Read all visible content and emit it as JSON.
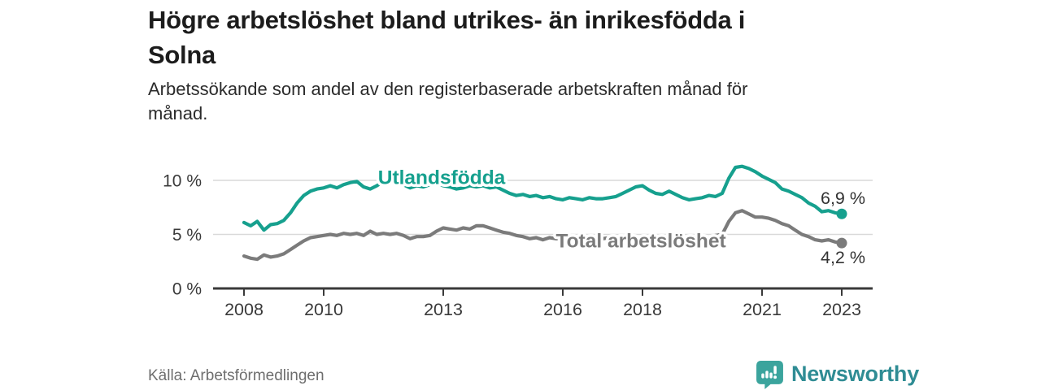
{
  "chart_data": {
    "type": "line",
    "title": "Högre arbetslöshet bland utrikes- än inrikesfödda i\nSolna",
    "subtitle": "Arbetssökande som andel av den registerbaserade arbetskraften månad för\nmånad.",
    "x": {
      "start_year": 2008,
      "points_per_year": 6,
      "tick_years": [
        2008,
        2010,
        2013,
        2016,
        2018,
        2021,
        2023
      ],
      "axis_range": [
        2007.2,
        2023.8
      ]
    },
    "y": {
      "ticks": [
        {
          "value": 0,
          "label": "0 %"
        },
        {
          "value": 5,
          "label": "5 %"
        },
        {
          "value": 10,
          "label": "10 %"
        }
      ],
      "range": [
        0,
        12.4
      ]
    },
    "grid": "horizontal",
    "legend": "inline-labels",
    "colors": {
      "axis": "#3a3a3a",
      "grid": "#d9d9d9",
      "tick_text": "#3a3a3a",
      "end_label_text": "#333333"
    },
    "series": [
      {
        "name": "Utlandsfödda",
        "color": "#16a08e",
        "end_label": "6,9 %",
        "end_value": 6.9,
        "label_at": {
          "year": 2012.96,
          "value": 10.3
        },
        "values": [
          6.1,
          5.8,
          6.2,
          5.4,
          5.9,
          6.0,
          6.3,
          7.0,
          7.9,
          8.6,
          9.0,
          9.2,
          9.3,
          9.5,
          9.3,
          9.6,
          9.8,
          9.9,
          9.4,
          9.2,
          9.5,
          9.9,
          10.0,
          9.7,
          9.6,
          9.3,
          9.5,
          9.4,
          9.6,
          9.8,
          9.5,
          9.4,
          9.2,
          9.3,
          9.5,
          9.4,
          9.5,
          9.3,
          9.4,
          9.1,
          8.8,
          8.6,
          8.7,
          8.5,
          8.6,
          8.4,
          8.5,
          8.3,
          8.2,
          8.4,
          8.3,
          8.2,
          8.4,
          8.3,
          8.3,
          8.4,
          8.5,
          8.8,
          9.1,
          9.4,
          9.5,
          9.1,
          8.8,
          8.7,
          9.0,
          8.7,
          8.4,
          8.2,
          8.3,
          8.4,
          8.6,
          8.5,
          8.8,
          10.2,
          11.2,
          11.3,
          11.1,
          10.8,
          10.4,
          10.1,
          9.8,
          9.2,
          9.0,
          8.7,
          8.4,
          7.9,
          7.6,
          7.1,
          7.2,
          7.0,
          6.9
        ]
      },
      {
        "name": "Total arbetslöshet",
        "color": "#7b7b7b",
        "end_label": "4,2 %",
        "end_value": 4.2,
        "label_at": {
          "year": 2017.96,
          "value": 4.45
        },
        "values": [
          3.0,
          2.8,
          2.7,
          3.1,
          2.9,
          3.0,
          3.2,
          3.6,
          4.0,
          4.4,
          4.7,
          4.8,
          4.9,
          5.0,
          4.9,
          5.1,
          5.0,
          5.1,
          4.9,
          5.3,
          5.0,
          5.1,
          5.0,
          5.1,
          4.9,
          4.6,
          4.8,
          4.8,
          4.9,
          5.3,
          5.6,
          5.5,
          5.4,
          5.6,
          5.5,
          5.8,
          5.8,
          5.6,
          5.4,
          5.2,
          5.1,
          4.9,
          4.8,
          4.6,
          4.7,
          4.5,
          4.7,
          4.6,
          4.6,
          4.7,
          4.6,
          4.6,
          4.7,
          4.6,
          4.6,
          4.7,
          4.6,
          4.7,
          4.6,
          4.7,
          4.6,
          4.6,
          4.5,
          4.6,
          4.6,
          4.5,
          4.5,
          4.6,
          4.5,
          4.6,
          4.7,
          4.9,
          5.0,
          6.2,
          7.0,
          7.2,
          6.9,
          6.6,
          6.6,
          6.5,
          6.3,
          6.0,
          5.8,
          5.4,
          5.0,
          4.8,
          4.5,
          4.4,
          4.5,
          4.3,
          4.2
        ]
      }
    ]
  },
  "footer": {
    "source": "Källa: Arbetsförmedlingen",
    "brand": "Newsworthy",
    "brand_icon": "bar-chart-speech-bubble-icon",
    "brand_color": "#2f8c94",
    "icon_color": "#3ba49d"
  }
}
